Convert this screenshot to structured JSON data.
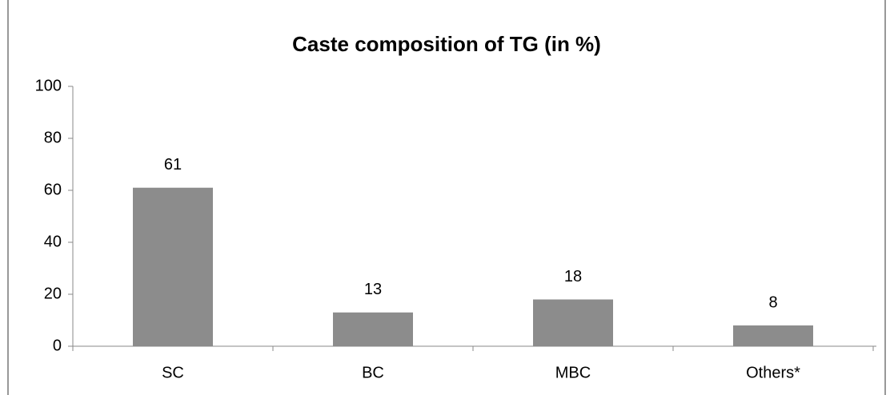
{
  "chart_data": {
    "type": "bar",
    "title": "Caste composition of TG (in %)",
    "categories": [
      "SC",
      "BC",
      "MBC",
      "Others*"
    ],
    "values": [
      61,
      13,
      18,
      8
    ],
    "color": "#8c8c8c",
    "ylim": [
      0,
      100
    ],
    "yticks": [
      0,
      20,
      40,
      60,
      80,
      100
    ],
    "grid": false
  }
}
